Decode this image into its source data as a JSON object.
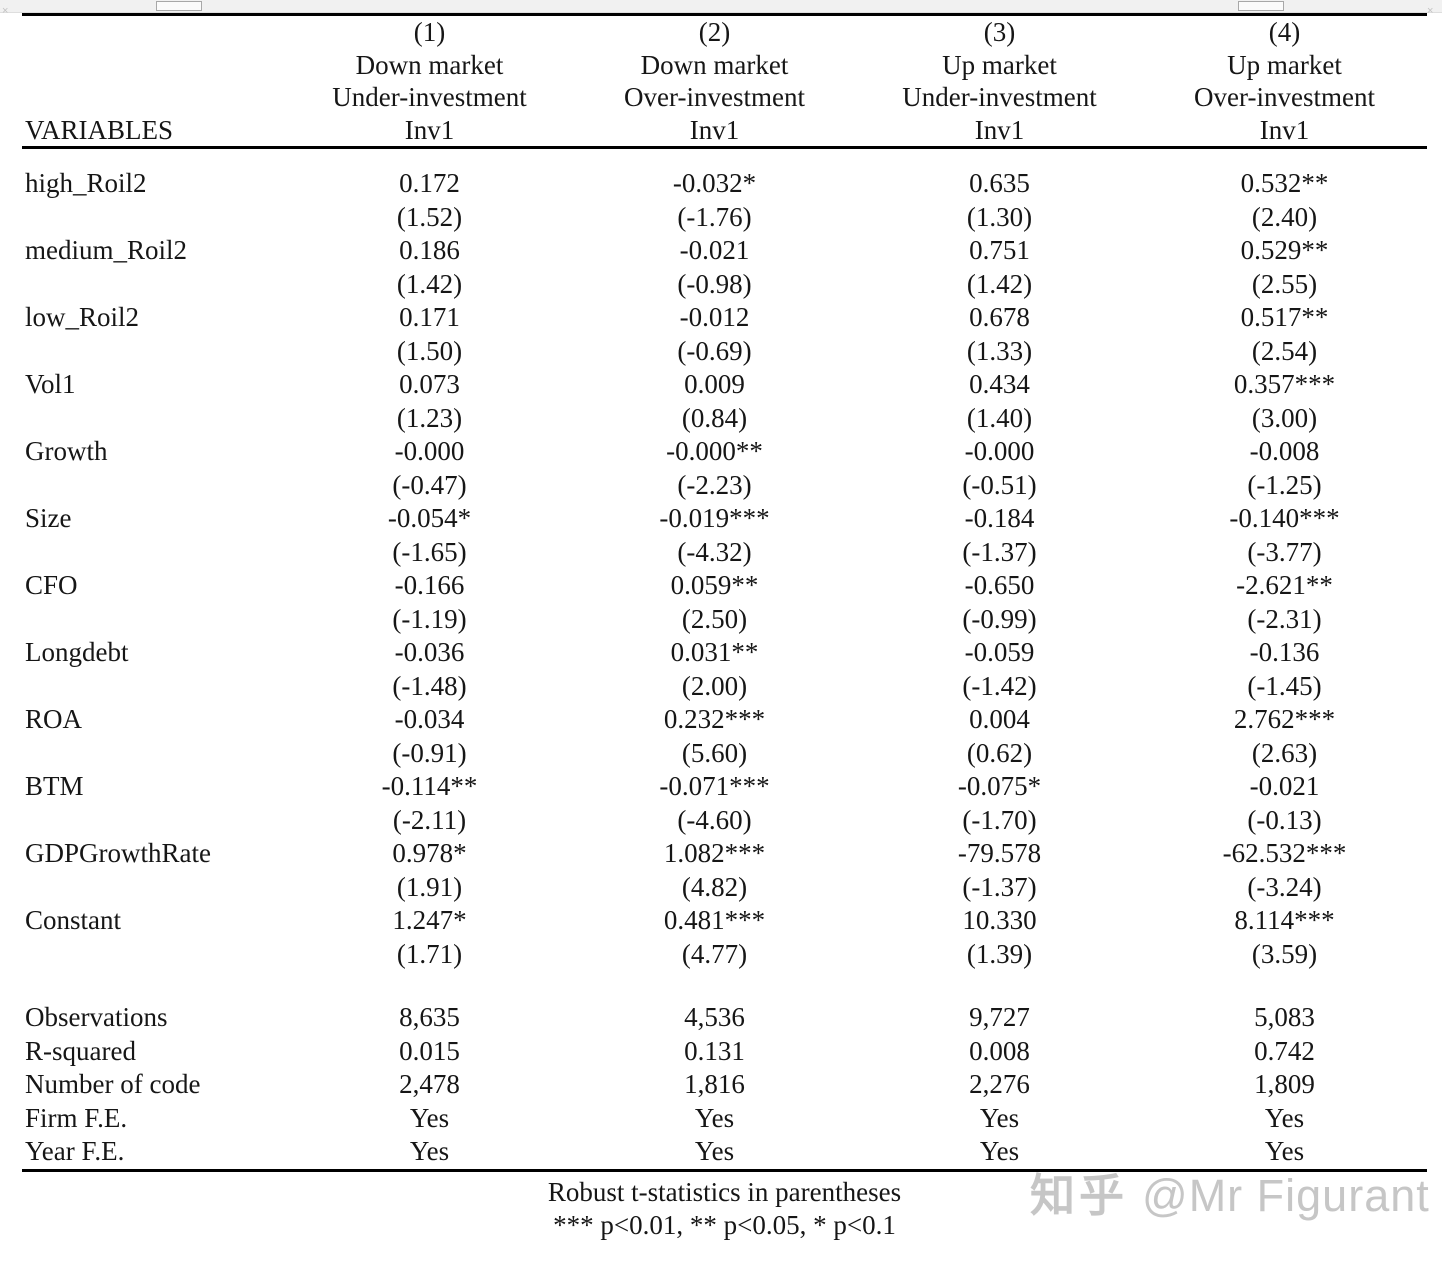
{
  "header": {
    "variables_label": "VARIABLES",
    "columns": [
      {
        "num": "(1)",
        "market": "Down market",
        "investment": "Under-investment",
        "depvar": "Inv1"
      },
      {
        "num": "(2)",
        "market": "Down market",
        "investment": "Over-investment",
        "depvar": "Inv1"
      },
      {
        "num": "(3)",
        "market": "Up market",
        "investment": "Under-investment",
        "depvar": "Inv1"
      },
      {
        "num": "(4)",
        "market": "Up market",
        "investment": "Over-investment",
        "depvar": "Inv1"
      }
    ]
  },
  "rows": [
    {
      "label": "high_Roil2",
      "coefs": [
        "0.172",
        "-0.032*",
        "0.635",
        "0.532**"
      ],
      "tstats": [
        "(1.52)",
        "(-1.76)",
        "(1.30)",
        "(2.40)"
      ]
    },
    {
      "label": "medium_Roil2",
      "coefs": [
        "0.186",
        "-0.021",
        "0.751",
        "0.529**"
      ],
      "tstats": [
        "(1.42)",
        "(-0.98)",
        "(1.42)",
        "(2.55)"
      ]
    },
    {
      "label": "low_Roil2",
      "coefs": [
        "0.171",
        "-0.012",
        "0.678",
        "0.517**"
      ],
      "tstats": [
        "(1.50)",
        "(-0.69)",
        "(1.33)",
        "(2.54)"
      ]
    },
    {
      "label": "Vol1",
      "coefs": [
        "0.073",
        "0.009",
        "0.434",
        "0.357***"
      ],
      "tstats": [
        "(1.23)",
        "(0.84)",
        "(1.40)",
        "(3.00)"
      ]
    },
    {
      "label": "Growth",
      "coefs": [
        "-0.000",
        "-0.000**",
        "-0.000",
        "-0.008"
      ],
      "tstats": [
        "(-0.47)",
        "(-2.23)",
        "(-0.51)",
        "(-1.25)"
      ]
    },
    {
      "label": "Size",
      "coefs": [
        "-0.054*",
        "-0.019***",
        "-0.184",
        "-0.140***"
      ],
      "tstats": [
        "(-1.65)",
        "(-4.32)",
        "(-1.37)",
        "(-3.77)"
      ]
    },
    {
      "label": "CFO",
      "coefs": [
        "-0.166",
        "0.059**",
        "-0.650",
        "-2.621**"
      ],
      "tstats": [
        "(-1.19)",
        "(2.50)",
        "(-0.99)",
        "(-2.31)"
      ]
    },
    {
      "label": "Longdebt",
      "coefs": [
        "-0.036",
        "0.031**",
        "-0.059",
        "-0.136"
      ],
      "tstats": [
        "(-1.48)",
        "(2.00)",
        "(-1.42)",
        "(-1.45)"
      ]
    },
    {
      "label": "ROA",
      "coefs": [
        "-0.034",
        "0.232***",
        "0.004",
        "2.762***"
      ],
      "tstats": [
        "(-0.91)",
        "(5.60)",
        "(0.62)",
        "(2.63)"
      ]
    },
    {
      "label": "BTM",
      "coefs": [
        "-0.114**",
        "-0.071***",
        "-0.075*",
        "-0.021"
      ],
      "tstats": [
        "(-2.11)",
        "(-4.60)",
        "(-1.70)",
        "(-0.13)"
      ]
    },
    {
      "label": "GDPGrowthRate",
      "coefs": [
        "0.978*",
        "1.082***",
        "-79.578",
        "-62.532***"
      ],
      "tstats": [
        "(1.91)",
        "(4.82)",
        "(-1.37)",
        "(-3.24)"
      ]
    },
    {
      "label": "Constant",
      "coefs": [
        "1.247*",
        "0.481***",
        "10.330",
        "8.114***"
      ],
      "tstats": [
        "(1.71)",
        "(4.77)",
        "(1.39)",
        "(3.59)"
      ]
    }
  ],
  "stats": [
    {
      "label": "Observations",
      "values": [
        "8,635",
        "4,536",
        "9,727",
        "5,083"
      ]
    },
    {
      "label": "R-squared",
      "values": [
        "0.015",
        "0.131",
        "0.008",
        "0.742"
      ]
    },
    {
      "label": "Number of code",
      "values": [
        "2,478",
        "1,816",
        "2,276",
        "1,809"
      ]
    },
    {
      "label": "Firm F.E.",
      "values": [
        "Yes",
        "Yes",
        "Yes",
        "Yes"
      ]
    },
    {
      "label": "Year F.E.",
      "values": [
        "Yes",
        "Yes",
        "Yes",
        "Yes"
      ]
    }
  ],
  "notes": {
    "line1": "Robust t-statistics in parentheses",
    "line2": "*** p<0.01, ** p<0.05, * p<0.1"
  },
  "watermark": {
    "brand": "知乎",
    "handle": "@Mr Figurant",
    "color": "#c6c6c6"
  }
}
